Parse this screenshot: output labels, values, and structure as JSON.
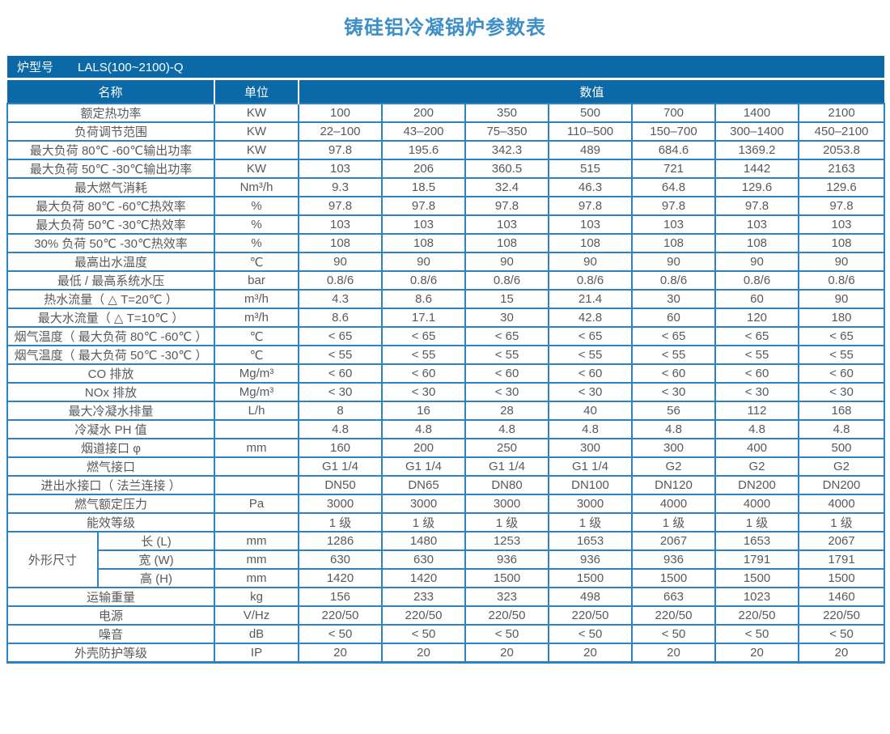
{
  "title": "铸硅铝冷凝锅炉参数表",
  "model_bar": {
    "label": "炉型号",
    "value": "LALS(100~2100)-Q"
  },
  "columns": {
    "name": "名称",
    "unit": "单位",
    "value": "数值"
  },
  "colors": {
    "header_bg": "#0a69a6",
    "grid_line": "#2e82bf",
    "title_text": "#3e8fc7",
    "body_text": "#58595b"
  },
  "rows": [
    {
      "label": "额定热功率",
      "unit": "KW",
      "values": [
        "100",
        "200",
        "350",
        "500",
        "700",
        "1400",
        "2100"
      ]
    },
    {
      "label": "负荷调节范围",
      "unit": "KW",
      "values": [
        "22–100",
        "43–200",
        "75–350",
        "110–500",
        "150–700",
        "300–1400",
        "450–2100"
      ]
    },
    {
      "label": "最大负荷 80℃ -60℃输出功率",
      "unit": "KW",
      "values": [
        "97.8",
        "195.6",
        "342.3",
        "489",
        "684.6",
        "1369.2",
        "2053.8"
      ]
    },
    {
      "label": "最大负荷 50℃ -30℃输出功率",
      "unit": "KW",
      "values": [
        "103",
        "206",
        "360.5",
        "515",
        "721",
        "1442",
        "2163"
      ]
    },
    {
      "label": "最大燃气消耗",
      "unit": "Nm³/h",
      "values": [
        "9.3",
        "18.5",
        "32.4",
        "46.3",
        "64.8",
        "129.6",
        "129.6"
      ]
    },
    {
      "label": "最大负荷 80℃ -60℃热效率",
      "unit": "%",
      "values": [
        "97.8",
        "97.8",
        "97.8",
        "97.8",
        "97.8",
        "97.8",
        "97.8"
      ]
    },
    {
      "label": "最大负荷 50℃ -30℃热效率",
      "unit": "%",
      "values": [
        "103",
        "103",
        "103",
        "103",
        "103",
        "103",
        "103"
      ]
    },
    {
      "label": "30% 负荷 50℃ -30℃热效率",
      "unit": "%",
      "values": [
        "108",
        "108",
        "108",
        "108",
        "108",
        "108",
        "108"
      ]
    },
    {
      "label": "最高出水温度",
      "unit": "℃",
      "values": [
        "90",
        "90",
        "90",
        "90",
        "90",
        "90",
        "90"
      ]
    },
    {
      "label": "最低 / 最高系统水压",
      "unit": "bar",
      "values": [
        "0.8/6",
        "0.8/6",
        "0.8/6",
        "0.8/6",
        "0.8/6",
        "0.8/6",
        "0.8/6"
      ]
    },
    {
      "label": "热水流量（ △ T=20℃ ）",
      "unit": "m³/h",
      "values": [
        "4.3",
        "8.6",
        "15",
        "21.4",
        "30",
        "60",
        "90"
      ]
    },
    {
      "label": "最大水流量（ △ T=10℃ ）",
      "unit": "m³/h",
      "values": [
        "8.6",
        "17.1",
        "30",
        "42.8",
        "60",
        "120",
        "180"
      ]
    },
    {
      "label": "烟气温度（ 最大负荷 80℃ -60℃ ）",
      "unit": "℃",
      "values": [
        "< 65",
        "< 65",
        "< 65",
        "< 65",
        "< 65",
        "< 65",
        "< 65"
      ]
    },
    {
      "label": "烟气温度（ 最大负荷 50℃ -30℃ ）",
      "unit": "℃",
      "values": [
        "< 55",
        "< 55",
        "< 55",
        "< 55",
        "< 55",
        "< 55",
        "< 55"
      ]
    },
    {
      "label": "CO 排放",
      "unit": "Mg/m³",
      "values": [
        "< 60",
        "< 60",
        "< 60",
        "< 60",
        "< 60",
        "< 60",
        "< 60"
      ]
    },
    {
      "label": "NOx 排放",
      "unit": "Mg/m³",
      "values": [
        "< 30",
        "< 30",
        "< 30",
        "< 30",
        "< 30",
        "< 30",
        "< 30"
      ]
    },
    {
      "label": "最大冷凝水排量",
      "unit": "L/h",
      "values": [
        "8",
        "16",
        "28",
        "40",
        "56",
        "112",
        "168"
      ]
    },
    {
      "label": "冷凝水 PH 值",
      "unit": "",
      "values": [
        "4.8",
        "4.8",
        "4.8",
        "4.8",
        "4.8",
        "4.8",
        "4.8"
      ]
    },
    {
      "label": "烟道接口 φ",
      "unit": "mm",
      "values": [
        "160",
        "200",
        "250",
        "300",
        "300",
        "400",
        "500"
      ]
    },
    {
      "label": "燃气接口",
      "unit": "",
      "values": [
        "G1 1/4",
        "G1 1/4",
        "G1 1/4",
        "G1 1/4",
        "G2",
        "G2",
        "G2"
      ]
    },
    {
      "label": "进出水接口（ 法兰连接 ）",
      "unit": "",
      "values": [
        "DN50",
        "DN65",
        "DN80",
        "DN100",
        "DN120",
        "DN200",
        "DN200"
      ]
    },
    {
      "label": "燃气额定压力",
      "unit": "Pa",
      "values": [
        "3000",
        "3000",
        "3000",
        "3000",
        "4000",
        "4000",
        "4000"
      ]
    },
    {
      "label": "能效等级",
      "unit": "",
      "values": [
        "1 级",
        "1 级",
        "1 级",
        "1 级",
        "1 级",
        "1 级",
        "1 级"
      ]
    },
    {
      "group": "外形尺寸",
      "group_span": 3,
      "label": "长 (L)",
      "unit": "mm",
      "values": [
        "1286",
        "1480",
        "1253",
        "1653",
        "2067",
        "1653",
        "2067"
      ]
    },
    {
      "in_group": true,
      "label": "宽 (W)",
      "unit": "mm",
      "values": [
        "630",
        "630",
        "936",
        "936",
        "936",
        "1791",
        "1791"
      ]
    },
    {
      "in_group": true,
      "label": "高 (H)",
      "unit": "mm",
      "values": [
        "1420",
        "1420",
        "1500",
        "1500",
        "1500",
        "1500",
        "1500"
      ]
    },
    {
      "label": "运输重量",
      "unit": "kg",
      "values": [
        "156",
        "233",
        "323",
        "498",
        "663",
        "1023",
        "1460"
      ]
    },
    {
      "label": "电源",
      "unit": "V/Hz",
      "values": [
        "220/50",
        "220/50",
        "220/50",
        "220/50",
        "220/50",
        "220/50",
        "220/50"
      ]
    },
    {
      "label": "噪音",
      "unit": "dB",
      "values": [
        "< 50",
        "< 50",
        "< 50",
        "< 50",
        "< 50",
        "< 50",
        "< 50"
      ]
    },
    {
      "label": "外壳防护等级",
      "unit": "IP",
      "values": [
        "20",
        "20",
        "20",
        "20",
        "20",
        "20",
        "20"
      ]
    }
  ]
}
